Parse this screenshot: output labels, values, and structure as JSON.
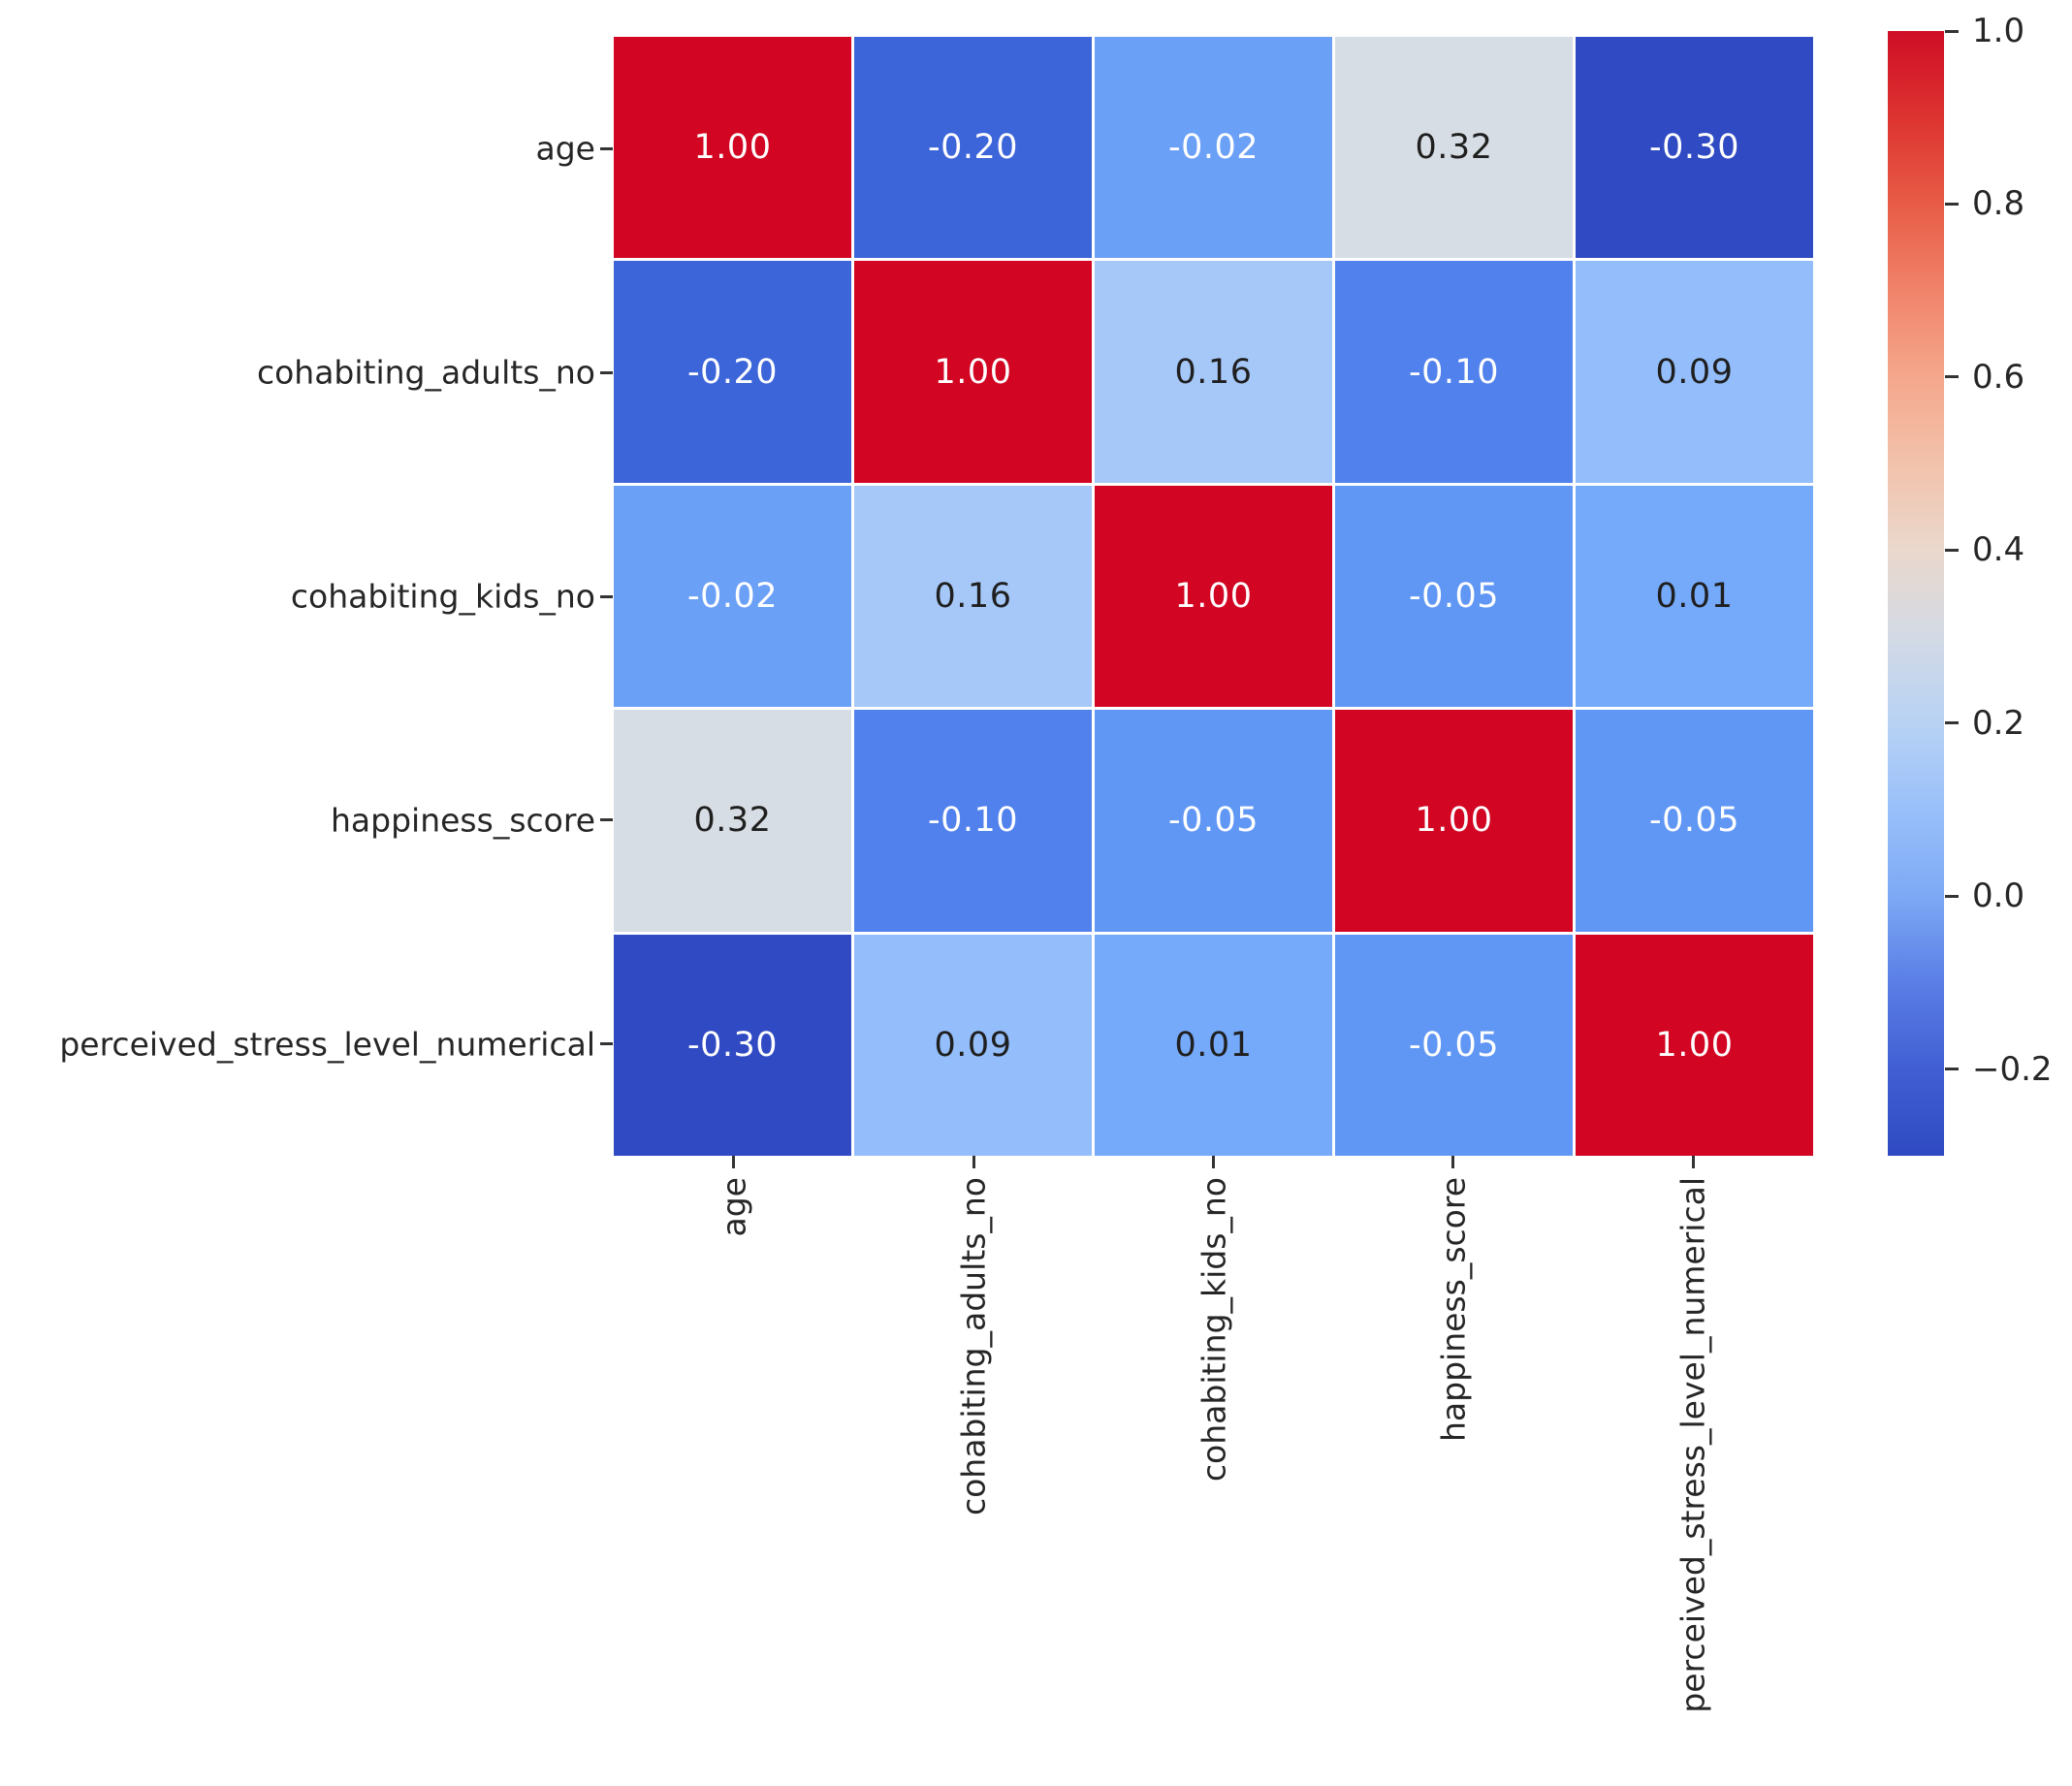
{
  "figure": {
    "background": "#ffffff",
    "kind": "seaborn-correlation-heatmap"
  },
  "chart_data": {
    "type": "heatmap",
    "title": "",
    "xlabel": "",
    "ylabel": "",
    "variables": [
      "age",
      "cohabiting_adults_no",
      "cohabiting_kids_no",
      "happiness_score",
      "perceived_stress_level_numerical"
    ],
    "matrix": [
      [
        1.0,
        -0.2,
        -0.02,
        0.32,
        -0.3
      ],
      [
        -0.2,
        1.0,
        0.16,
        -0.1,
        0.09
      ],
      [
        -0.02,
        0.16,
        1.0,
        -0.05,
        0.01
      ],
      [
        0.32,
        -0.1,
        -0.05,
        1.0,
        -0.05
      ],
      [
        -0.3,
        0.09,
        0.01,
        -0.05,
        1.0
      ]
    ],
    "annotation_format": "2-decimals",
    "colormap": "coolwarm",
    "vmin": -0.3,
    "vmax": 1.0,
    "grid_lines": "thin-white",
    "colorbar": {
      "position": "right",
      "tick_values": [
        1.0,
        0.8,
        0.6,
        0.4,
        0.2,
        0.0,
        -0.2
      ],
      "tick_labels": [
        "1.0",
        "0.8",
        "0.6",
        "0.4",
        "0.2",
        "0.0",
        "−0.2"
      ]
    }
  },
  "style": {
    "value_colors": {
      "1.00": "#d20522",
      "0.32": "#d7dde4",
      "0.16": "#a6c8f9",
      "0.09": "#94befb",
      "0.01": "#75a9f9",
      "-0.02": "#6ba0f7",
      "-0.05": "#6197f4",
      "-0.10": "#5181ec",
      "-0.20": "#3d65da",
      "-0.30": "#2f4ac2"
    },
    "dark_text_values": [
      "0.32",
      "0.16",
      "0.09",
      "0.01"
    ],
    "cell_text_light": "#ffffff",
    "cell_text_dark": "#1f1f1f",
    "label_color": "#262626",
    "tick_color": "#333333",
    "gradient_stops": [
      {
        "v": -0.3,
        "c": "#2f4ac2"
      },
      {
        "v": -0.2,
        "c": "#415fd3"
      },
      {
        "v": -0.1,
        "c": "#5a7ee6"
      },
      {
        "v": 0.0,
        "c": "#7da9f5"
      },
      {
        "v": 0.1,
        "c": "#99c0fa"
      },
      {
        "v": 0.2,
        "c": "#b8d2f4"
      },
      {
        "v": 0.3,
        "c": "#d3dae5"
      },
      {
        "v": 0.4,
        "c": "#ead8cc"
      },
      {
        "v": 0.5,
        "c": "#f2c2ab"
      },
      {
        "v": 0.6,
        "c": "#f5a78c"
      },
      {
        "v": 0.7,
        "c": "#f0836a"
      },
      {
        "v": 0.8,
        "c": "#e85c46"
      },
      {
        "v": 0.9,
        "c": "#dd3330"
      },
      {
        "v": 1.0,
        "c": "#cf0e27"
      }
    ]
  }
}
